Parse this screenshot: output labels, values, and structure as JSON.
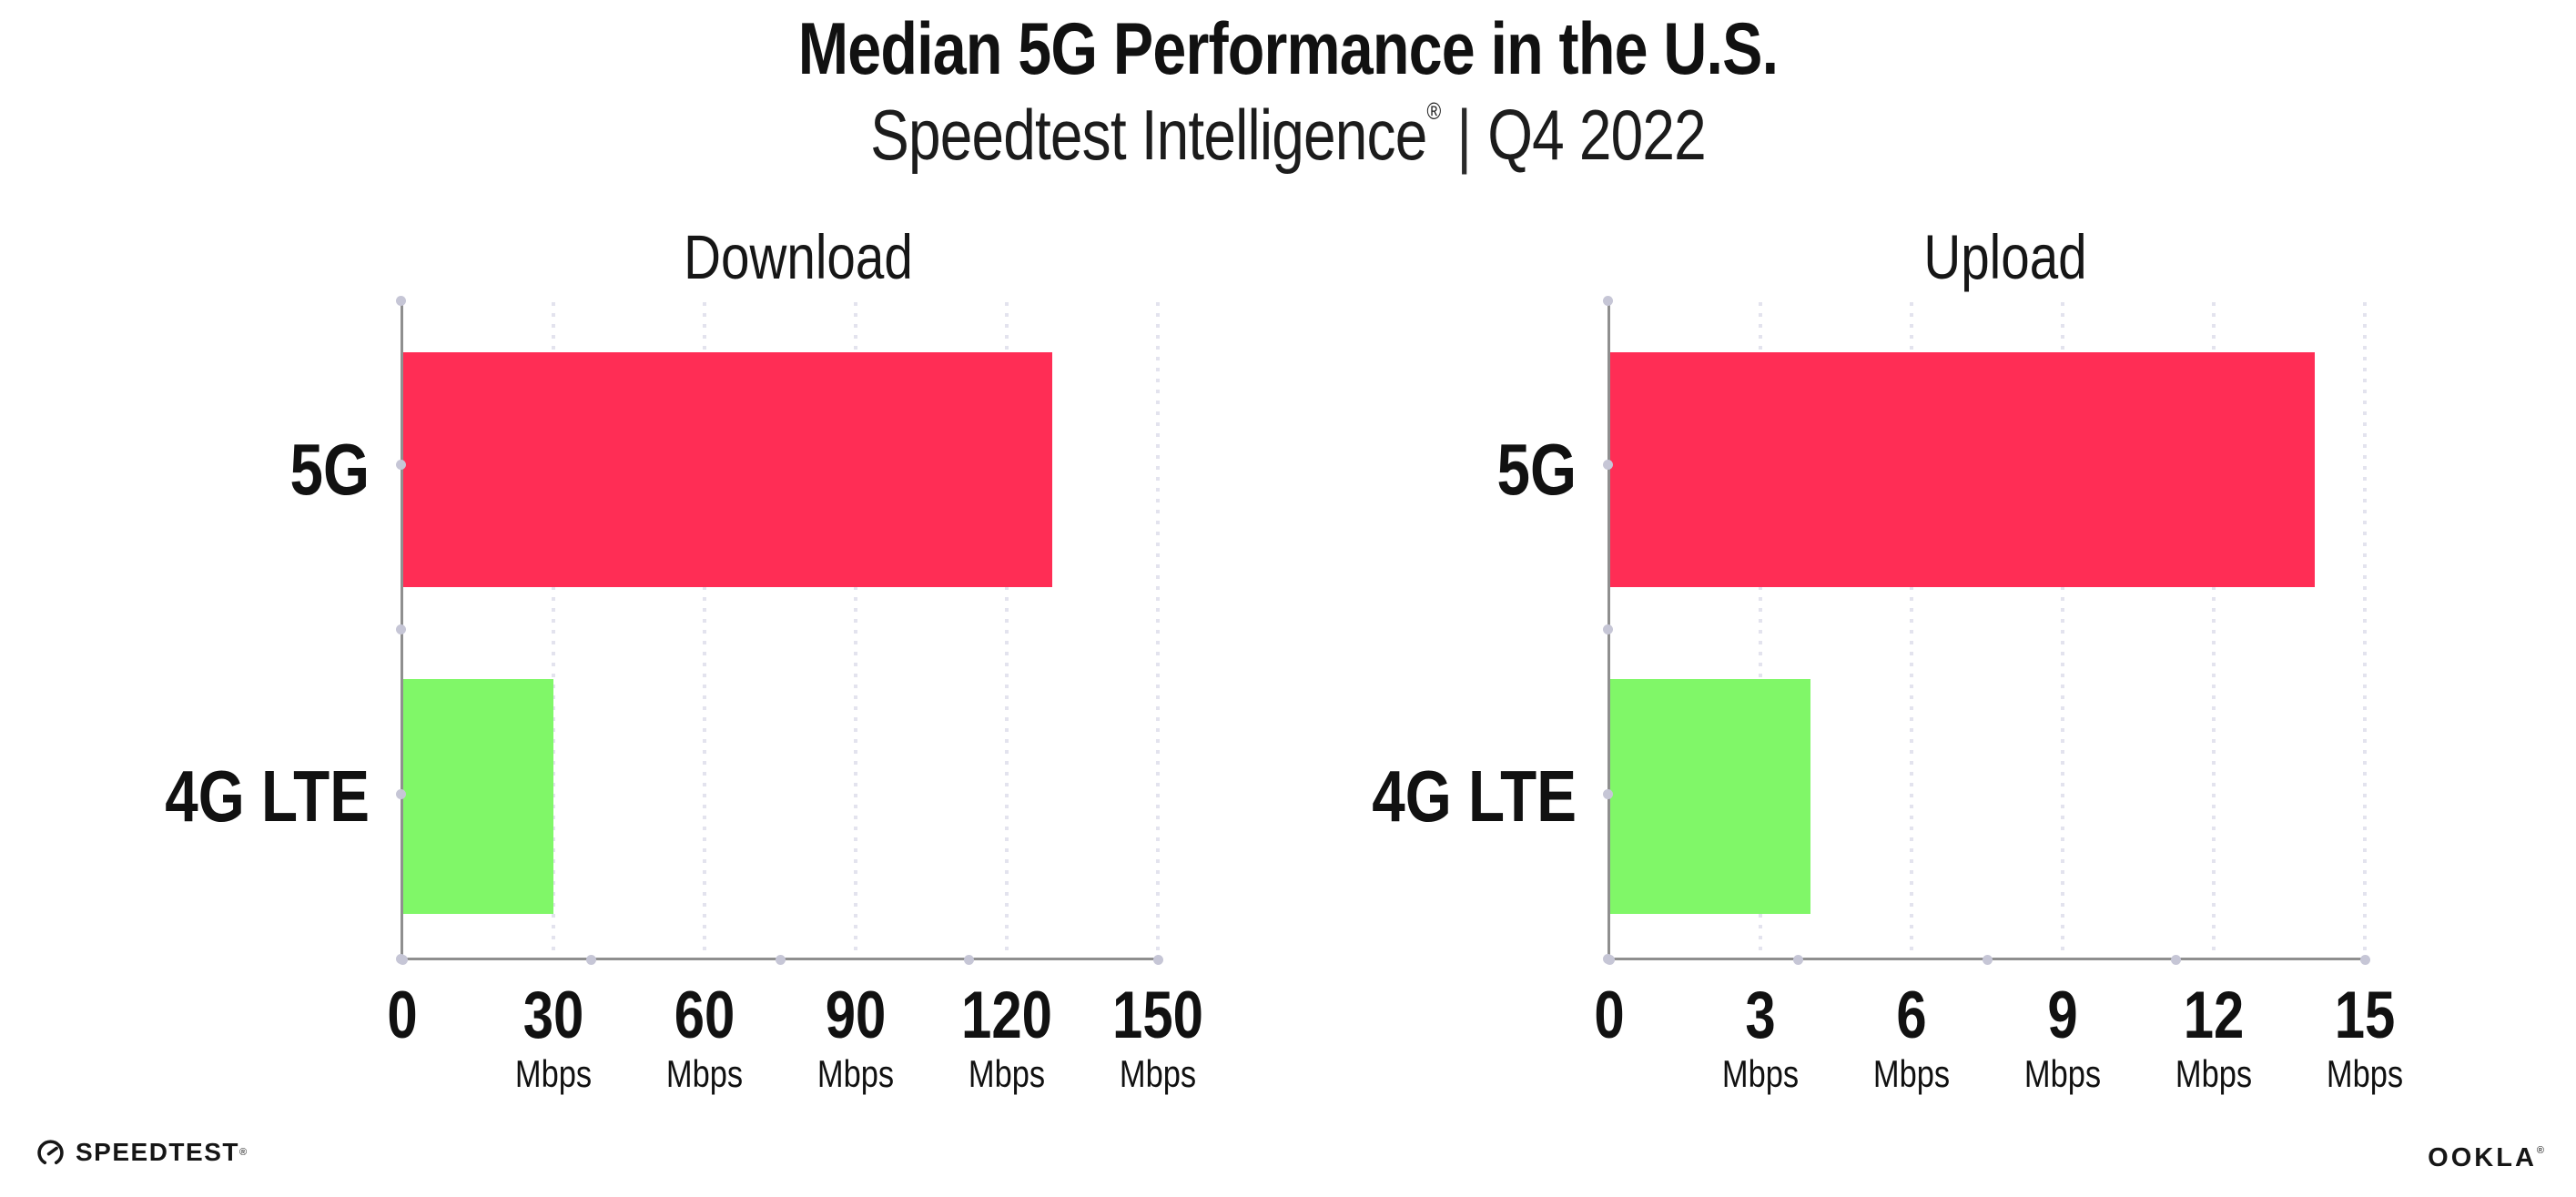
{
  "title": "Median 5G Performance in the U.S.",
  "subtitle": {
    "product": "Speedtest Intelligence",
    "registered_mark": "®",
    "separator": "|",
    "period": "Q4 2022"
  },
  "chart_data": [
    {
      "type": "bar",
      "orientation": "horizontal",
      "title": "Download",
      "categories": [
        "5G",
        "4G LTE"
      ],
      "values": [
        129,
        30
      ],
      "unit": "Mbps",
      "xlim": [
        0,
        150
      ],
      "xticks": [
        0,
        30,
        60,
        90,
        120,
        150
      ],
      "tick_unit": "Mbps",
      "bar_colors": [
        "#ff2d55",
        "#80f768"
      ],
      "grid": "dotted-vertical-light",
      "legend": "none"
    },
    {
      "type": "bar",
      "orientation": "horizontal",
      "title": "Upload",
      "categories": [
        "5G",
        "4G LTE"
      ],
      "values": [
        14,
        4
      ],
      "unit": "Mbps",
      "xlim": [
        0,
        15
      ],
      "xticks": [
        0,
        3,
        6,
        9,
        12,
        15
      ],
      "tick_unit": "Mbps",
      "bar_colors": [
        "#ff2d55",
        "#80f768"
      ],
      "grid": "dotted-vertical-light",
      "legend": "none"
    }
  ],
  "footer": {
    "speedtest_text": "SPEEDTEST",
    "speedtest_mark": "®",
    "ookla_text": "OOKLA",
    "ookla_mark": "®"
  },
  "colors": {
    "bar_5g": "#ff2d55",
    "bar_4g_lte": "#80f768",
    "axis_line": "#8f8f8f",
    "axis_dot": "#c6c6d6",
    "gridline": "#e3e3ee",
    "text": "#111111",
    "background": "#ffffff"
  }
}
